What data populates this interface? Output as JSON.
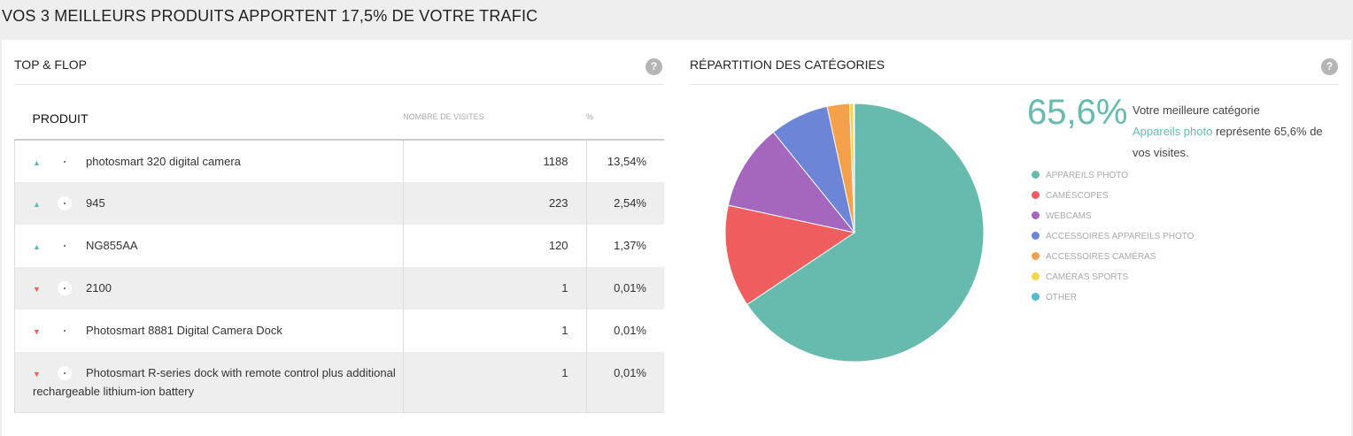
{
  "header": {
    "title": "VOS 3 MEILLEURS PRODUITS APPORTENT 17,5% DE VOTRE TRAFIC"
  },
  "top_flop": {
    "title": "TOP & FLOP",
    "help_icon": "?",
    "columns": {
      "product": "PRODUIT",
      "visits": "NOMBRE DE VISITES",
      "pct": "%"
    },
    "rows": [
      {
        "trend": "up",
        "name": "photosmart 320 digital camera",
        "visits": "1188",
        "pct": "13,54%"
      },
      {
        "trend": "up",
        "name": "945",
        "visits": "223",
        "pct": "2,54%"
      },
      {
        "trend": "up",
        "name": "NG855AA",
        "visits": "120",
        "pct": "1,37%"
      },
      {
        "trend": "down",
        "name": "2100",
        "visits": "1",
        "pct": "0,01%"
      },
      {
        "trend": "down",
        "name": "Photosmart 8881 Digital Camera Dock",
        "visits": "1",
        "pct": "0,01%"
      },
      {
        "trend": "down",
        "name": "Photosmart R-series dock with remote control plus additional rechargeable lithium-ion battery",
        "visits": "1",
        "pct": "0,01%"
      }
    ]
  },
  "categories": {
    "title": "RÉPARTITION DES CATÉGORIES",
    "help_icon": "?",
    "big_value": "65,6%",
    "desc_pre": "Votre meilleure catégorie",
    "desc_hl": "Appareils photo",
    "desc_post": " représente 65,6% de vos visites."
  },
  "chart_data": {
    "type": "pie",
    "start": "top",
    "direction": "clockwise",
    "series": [
      {
        "name": "APPAREILS PHOTO",
        "value": 65.6,
        "color": "#67bbad"
      },
      {
        "name": "CAMÉSCOPES",
        "value": 12.8,
        "color": "#ef5e5e"
      },
      {
        "name": "WEBCAMS",
        "value": 10.8,
        "color": "#a566bd"
      },
      {
        "name": "ACCESSOIRES APPAREILS PHOTO",
        "value": 7.4,
        "color": "#6c85d6"
      },
      {
        "name": "ACCESSOIRES CAMÉRAS",
        "value": 2.8,
        "color": "#f5a04b"
      },
      {
        "name": "CAMÉRAS SPORTS",
        "value": 0.5,
        "color": "#f5d54b"
      },
      {
        "name": "OTHER",
        "value": 0.1,
        "color": "#55b9cf"
      }
    ],
    "legend": "right"
  }
}
